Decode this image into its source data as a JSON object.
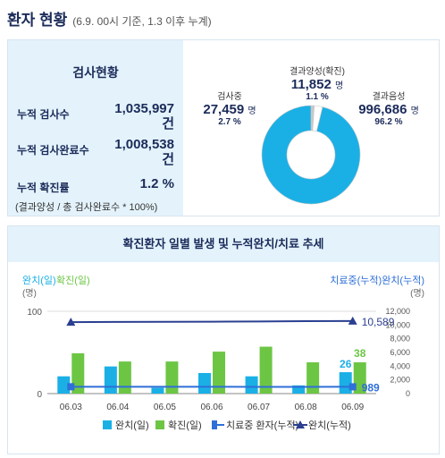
{
  "header": {
    "title": "환자 현황",
    "subtitle": "(6.9. 00시 기준, 1.3 이후 누계)"
  },
  "stats": {
    "title": "검사현황",
    "items": [
      {
        "label": "누적 검사수",
        "value": "1,035,997",
        "unit": "건"
      },
      {
        "label": "누적 검사완료수",
        "value": "1,008,538",
        "unit": "건"
      },
      {
        "label": "누적 확진률",
        "value": "1.2 %",
        "unit": ""
      }
    ],
    "note": "(결과양성 / 총 검사완료수 * 100%)"
  },
  "donut": {
    "segments": [
      {
        "label": "결과양성(확진)",
        "value": "11,852",
        "unit": "명",
        "pct": "1.1 %",
        "share": 1.1,
        "color": "#c8c8c8"
      },
      {
        "label": "검사중",
        "value": "27,459",
        "unit": "명",
        "pct": "2.7 %",
        "share": 2.7,
        "color": "#ffffff"
      },
      {
        "label": "결과음성",
        "value": "996,686",
        "unit": "명",
        "pct": "96.2 %",
        "share": 96.2,
        "color": "#1ab0e6"
      }
    ]
  },
  "chart_data": {
    "type": "bar",
    "title": "확진환자 일별 발생 및 누적완치/치료 추세",
    "categories": [
      "06.03",
      "06.04",
      "06.05",
      "06.06",
      "06.07",
      "06.08",
      "06.09"
    ],
    "left_axis": {
      "label_a": "완치(일)",
      "label_b": "확진(일)",
      "unit": "(명)",
      "ticks": [
        "100",
        "0"
      ],
      "range": [
        0,
        100
      ]
    },
    "right_axis": {
      "label": "치료중(누적)완치(누적)",
      "unit": "(명)",
      "ticks": [
        "12,000",
        "10,000",
        "8,000",
        "6,000",
        "4,000",
        "2,000",
        "0"
      ],
      "range": [
        0,
        12000
      ]
    },
    "series": [
      {
        "name": "완치(일)",
        "type": "bar",
        "axis": "left",
        "color": "#1ab0e6",
        "values": [
          21,
          33,
          7,
          25,
          21,
          10,
          26
        ]
      },
      {
        "name": "확진(일)",
        "type": "bar",
        "axis": "left",
        "color": "#6cc644",
        "values": [
          49,
          39,
          39,
          51,
          57,
          38,
          38
        ]
      },
      {
        "name": "치료중 환자(누적)",
        "type": "line",
        "axis": "right",
        "color": "#2f6fd8",
        "values": [
          1000,
          995,
          990,
          990,
          985,
          985,
          989
        ]
      },
      {
        "name": "완치(누적)",
        "type": "line",
        "axis": "right",
        "color": "#2b3f91",
        "values": [
          10422,
          10450,
          10460,
          10490,
          10510,
          10565,
          10589
        ]
      }
    ],
    "annotations": {
      "last_recovered_daily": "26",
      "last_confirmed_daily": "38",
      "last_treating": "989",
      "last_recovered_cum": "10,589"
    }
  }
}
